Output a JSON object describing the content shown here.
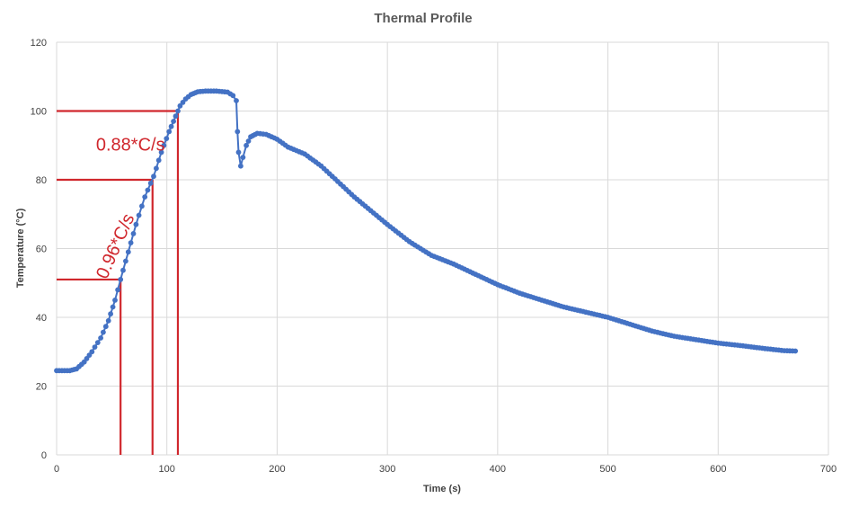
{
  "chart_data": {
    "type": "scatter",
    "title": "Thermal Profile",
    "xlabel": "Time (s)",
    "ylabel": "Temperature (°C)",
    "xlim": [
      0,
      700
    ],
    "ylim": [
      0,
      120
    ],
    "xticks": [
      "0",
      "100",
      "200",
      "300",
      "400",
      "500",
      "600",
      "700"
    ],
    "yticks": [
      "0",
      "20",
      "40",
      "60",
      "80",
      "100",
      "120"
    ],
    "grid": true,
    "legend": "none",
    "series": [
      {
        "color": "#4472c4",
        "marker": "circle",
        "line": true,
        "anchors": [
          [
            0,
            24.5
          ],
          [
            12,
            24.5
          ],
          [
            18,
            25
          ],
          [
            25,
            27
          ],
          [
            32,
            30
          ],
          [
            40,
            34
          ],
          [
            47,
            39
          ],
          [
            53,
            45
          ],
          [
            58,
            51
          ],
          [
            65,
            59
          ],
          [
            72,
            67
          ],
          [
            80,
            75
          ],
          [
            88,
            81
          ],
          [
            95,
            88
          ],
          [
            102,
            94
          ],
          [
            108,
            98.5
          ],
          [
            112,
            101.5
          ],
          [
            117,
            103.5
          ],
          [
            122,
            104.8
          ],
          [
            128,
            105.6
          ],
          [
            135,
            105.8
          ],
          [
            145,
            105.8
          ],
          [
            155,
            105.5
          ],
          [
            160,
            104.5
          ],
          [
            163,
            103
          ],
          [
            164,
            94
          ],
          [
            165,
            88
          ],
          [
            167,
            84
          ],
          [
            169,
            86.5
          ],
          [
            172,
            90
          ],
          [
            176,
            92.5
          ],
          [
            182,
            93.5
          ],
          [
            190,
            93.2
          ],
          [
            200,
            91.8
          ],
          [
            210,
            89.5
          ],
          [
            225,
            87.5
          ],
          [
            240,
            84
          ],
          [
            255,
            79.5
          ],
          [
            270,
            75
          ],
          [
            285,
            71
          ],
          [
            300,
            67
          ],
          [
            320,
            62
          ],
          [
            340,
            58
          ],
          [
            360,
            55.5
          ],
          [
            380,
            52.5
          ],
          [
            400,
            49.5
          ],
          [
            420,
            47
          ],
          [
            440,
            45
          ],
          [
            460,
            43
          ],
          [
            480,
            41.5
          ],
          [
            500,
            40
          ],
          [
            520,
            38
          ],
          [
            540,
            36
          ],
          [
            560,
            34.5
          ],
          [
            580,
            33.5
          ],
          [
            600,
            32.5
          ],
          [
            620,
            31.8
          ],
          [
            640,
            31
          ],
          [
            660,
            30.3
          ],
          [
            670,
            30.2
          ]
        ]
      }
    ],
    "reference_lines": [
      {
        "color": "#d0272d",
        "x": 58,
        "y": 51
      },
      {
        "color": "#d0272d",
        "x": 87,
        "y": 80
      },
      {
        "color": "#d0272d",
        "x": 110,
        "y": 100
      }
    ],
    "annotations": [
      {
        "text": "0.88*C/s",
        "color": "#d0272d",
        "x": 67,
        "y": 88.5
      },
      {
        "text": "0.96*C/s",
        "color": "#d0272d",
        "x": 58,
        "y": 60
      }
    ]
  }
}
